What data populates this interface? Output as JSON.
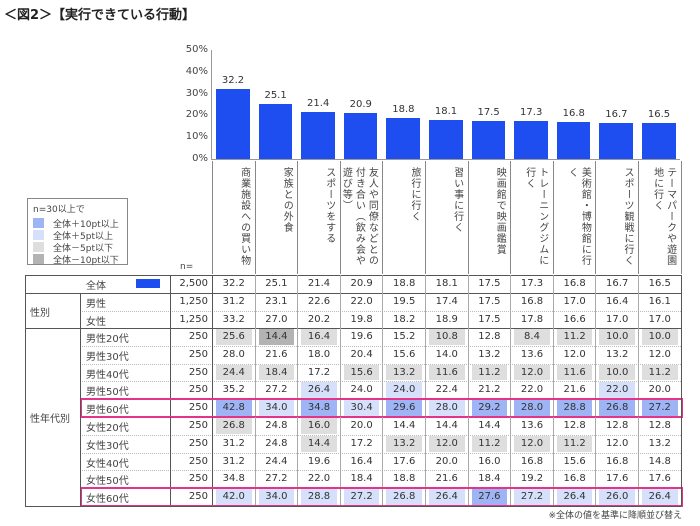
{
  "title": "＜図2＞【実行できている行動】",
  "chart_data": {
    "type": "bar",
    "ylim": [
      0,
      50
    ],
    "yticks": [
      "50%",
      "40%",
      "30%",
      "20%",
      "10%",
      "0%"
    ],
    "categories": [
      "商業施設への買い物",
      "家族との外食",
      "スポーツをする",
      "友人や同僚などとの付き合い（飲み会や遊び等）",
      "旅行に行く",
      "習い事に行く",
      "映画館で映画鑑賞",
      "トレーニングジムに行く",
      "美術館・博物館に行く",
      "スポーツ観戦に行く",
      "テーマパークや遊園地に行く"
    ],
    "values": [
      32.2,
      25.1,
      21.4,
      20.9,
      18.8,
      18.1,
      17.5,
      17.3,
      16.8,
      16.7,
      16.5
    ],
    "bar_color": "#1f4ef0"
  },
  "legend": {
    "heading": "n=30以上で",
    "items": [
      {
        "label": "全体＋10pt以上",
        "color": "#9fb4f5"
      },
      {
        "label": "全体＋5pt以上",
        "color": "#d6e0fb"
      },
      {
        "label": "全体－5pt以下",
        "color": "#dedede"
      },
      {
        "label": "全体－10pt以下",
        "color": "#b3b3b3"
      }
    ]
  },
  "table": {
    "n_header": "n=",
    "groups": [
      {
        "label": "",
        "rows": [
          {
            "label": "全体",
            "n": "2,500",
            "values": [
              32.2,
              25.1,
              21.4,
              20.9,
              18.8,
              18.1,
              17.5,
              17.3,
              16.8,
              16.7,
              16.5
            ]
          }
        ]
      },
      {
        "label": "性別",
        "rows": [
          {
            "label": "男性",
            "n": "1,250",
            "values": [
              31.2,
              23.1,
              22.6,
              22.0,
              19.5,
              17.4,
              17.5,
              16.8,
              17.0,
              16.4,
              16.1
            ]
          },
          {
            "label": "女性",
            "n": "1,250",
            "values": [
              33.2,
              27.0,
              20.2,
              19.8,
              18.2,
              18.9,
              17.5,
              17.8,
              16.6,
              17.0,
              17.0
            ]
          }
        ]
      },
      {
        "label": "性年代別",
        "rows": [
          {
            "label": "男性20代",
            "n": "250",
            "values": [
              25.6,
              14.4,
              16.4,
              19.6,
              15.2,
              10.8,
              12.8,
              8.4,
              11.2,
              10.0,
              10.0
            ]
          },
          {
            "label": "男性30代",
            "n": "250",
            "values": [
              28.0,
              21.6,
              18.0,
              20.4,
              15.6,
              14.0,
              13.2,
              13.6,
              12.0,
              13.2,
              12.0
            ]
          },
          {
            "label": "男性40代",
            "n": "250",
            "values": [
              24.4,
              18.4,
              17.2,
              15.6,
              13.2,
              11.6,
              11.2,
              12.0,
              11.6,
              10.0,
              11.2
            ]
          },
          {
            "label": "男性50代",
            "n": "250",
            "values": [
              35.2,
              27.2,
              26.4,
              24.0,
              24.0,
              22.4,
              21.2,
              22.0,
              21.6,
              22.0,
              20.0
            ]
          },
          {
            "label": "男性60代",
            "n": "250",
            "values": [
              42.8,
              34.0,
              34.8,
              30.4,
              29.6,
              28.0,
              29.2,
              28.0,
              28.8,
              26.8,
              27.2
            ],
            "highlight": true
          },
          {
            "label": "女性20代",
            "n": "250",
            "values": [
              26.8,
              24.8,
              16.0,
              20.0,
              14.4,
              14.4,
              14.4,
              13.6,
              12.8,
              12.8,
              12.8
            ]
          },
          {
            "label": "女性30代",
            "n": "250",
            "values": [
              31.2,
              24.8,
              14.4,
              17.2,
              13.2,
              12.0,
              11.2,
              12.0,
              11.2,
              12.0,
              13.2
            ]
          },
          {
            "label": "女性40代",
            "n": "250",
            "values": [
              31.2,
              24.4,
              19.6,
              16.4,
              17.6,
              20.0,
              16.0,
              16.8,
              15.6,
              16.8,
              14.8
            ]
          },
          {
            "label": "女性50代",
            "n": "250",
            "values": [
              34.8,
              27.2,
              22.0,
              18.4,
              18.8,
              21.6,
              18.4,
              19.2,
              16.8,
              17.6,
              17.6
            ]
          },
          {
            "label": "女性60代",
            "n": "250",
            "values": [
              42.0,
              34.0,
              28.8,
              27.2,
              26.8,
              26.4,
              27.6,
              27.2,
              26.4,
              26.0,
              26.4
            ],
            "highlight": true
          }
        ]
      }
    ],
    "highlight_color": "#e6338a"
  },
  "footnote": "※全体の値を基準に降順並び替え"
}
